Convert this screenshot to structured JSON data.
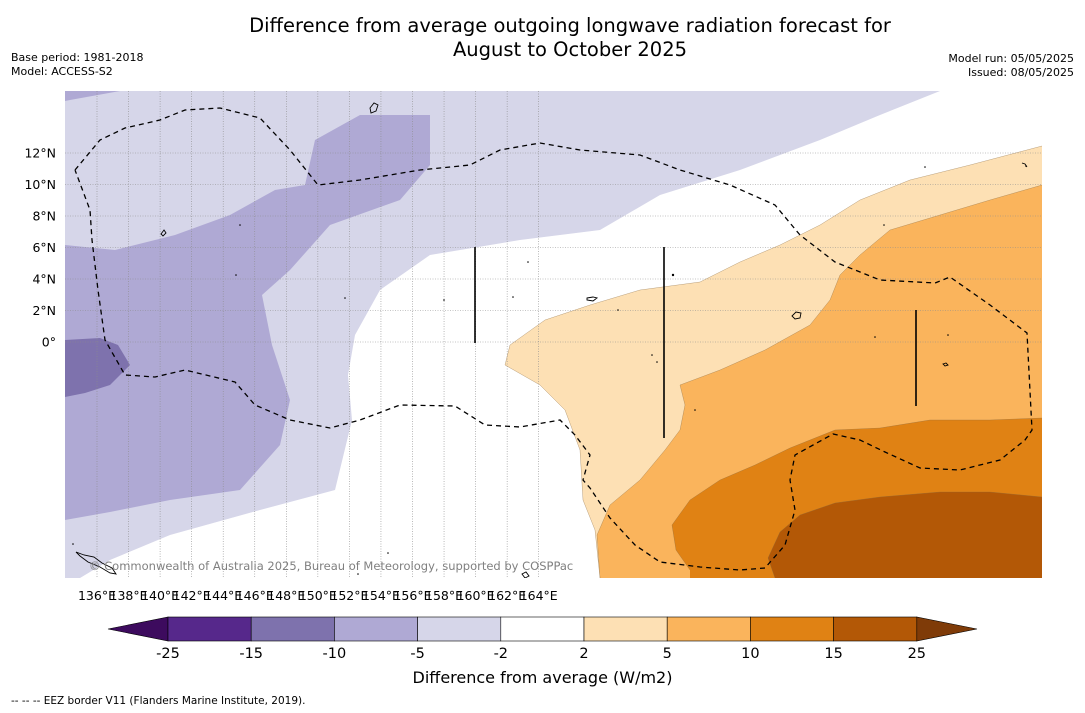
{
  "header": {
    "title_line1": "Difference from average outgoing longwave radiation forecast for",
    "title_line2": "August to October 2025",
    "base_period": "Base period: 1981-2018",
    "model": "Model: ACCESS-S2",
    "model_run": "Model run: 05/05/2025",
    "issued": "Issued: 08/05/2025"
  },
  "map": {
    "lon_labels": [
      "136°E",
      "138°E",
      "140°E",
      "142°E",
      "144°E",
      "146°E",
      "148°E",
      "150°E",
      "152°E",
      "154°E",
      "156°E",
      "158°E",
      "160°E",
      "162°E",
      "164°E"
    ],
    "lat_labels": [
      "12°N",
      "10°N",
      "8°N",
      "6°N",
      "4°N",
      "2°N",
      "0°"
    ],
    "copyright": "© Commonwealth of Australia 2025, Bureau of Meteorology, supported by COSPPac"
  },
  "colorbar": {
    "title": "Difference from average (W/m2)",
    "tick_labels": [
      "-25",
      "-15",
      "-10",
      "-5",
      "-2",
      "2",
      "5",
      "10",
      "15",
      "25"
    ],
    "colors": [
      "#3d0b5e",
      "#56288b",
      "#7e72ad",
      "#afa9d4",
      "#d6d6e9",
      "#ffffff",
      "#fde0b4",
      "#fab45c",
      "#e08214",
      "#b35806",
      "#7f3b08"
    ]
  },
  "footnote": "--  --  -- EEZ border V11 (Flanders Marine Institute, 2019)."
}
